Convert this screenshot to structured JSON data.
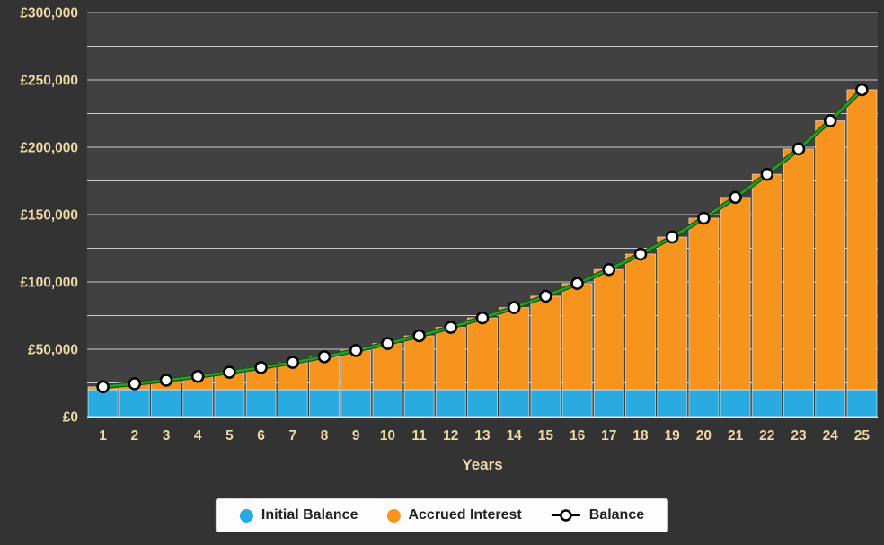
{
  "chart_data": {
    "type": "bar",
    "combo": "stacked columns with line overlay",
    "stacked": true,
    "x": [
      1,
      2,
      3,
      4,
      5,
      6,
      7,
      8,
      9,
      10,
      11,
      12,
      13,
      14,
      15,
      16,
      17,
      18,
      19,
      20,
      21,
      22,
      23,
      24,
      25
    ],
    "xlabel": "Years",
    "ylim": [
      0,
      300000
    ],
    "ytick_major": 50000,
    "gridline_interval": 25000,
    "ytick_labels": [
      "£0",
      "£50,000",
      "£100,000",
      "£150,000",
      "£200,000",
      "£250,000",
      "£300,000"
    ],
    "legend_position": "bottom",
    "grid": true,
    "series": [
      {
        "name": "Initial Balance",
        "type": "bar",
        "color": "#29abe2",
        "values": [
          20000,
          20000,
          20000,
          20000,
          20000,
          20000,
          20000,
          20000,
          20000,
          20000,
          20000,
          20000,
          20000,
          20000,
          20000,
          20000,
          20000,
          20000,
          20000,
          20000,
          20000,
          20000,
          20000,
          20000,
          20000
        ]
      },
      {
        "name": "Accrued Interest",
        "type": "bar",
        "color": "#f7941e",
        "values": [
          2100,
          4421,
          6985,
          9817,
          12948,
          16407,
          20230,
          24454,
          29122,
          34280,
          39979,
          46277,
          53236,
          60926,
          69423,
          78812,
          89188,
          100653,
          113321,
          127320,
          142788,
          159881,
          178769,
          199639,
          222701
        ]
      },
      {
        "name": "Balance",
        "type": "line",
        "color": "#2c9a2c",
        "marker": "circle-white-black-outline",
        "values": [
          22100,
          24421,
          26985,
          29817,
          32948,
          36407,
          40230,
          44454,
          49122,
          54280,
          59979,
          66277,
          73236,
          80926,
          89423,
          98812,
          109188,
          120653,
          133321,
          147320,
          162788,
          179881,
          198769,
          219639,
          242701
        ]
      }
    ],
    "colors": {
      "background": "#333333",
      "plot_background": "#414141",
      "gridline": "#e2e2e2",
      "axis_label": "#ecd9a6",
      "line_dark": "#12520f",
      "marker_fill": "#ffffff",
      "marker_stroke": "#000000",
      "legend_background": "#fdfdfd",
      "legend_text": "#222222"
    }
  }
}
